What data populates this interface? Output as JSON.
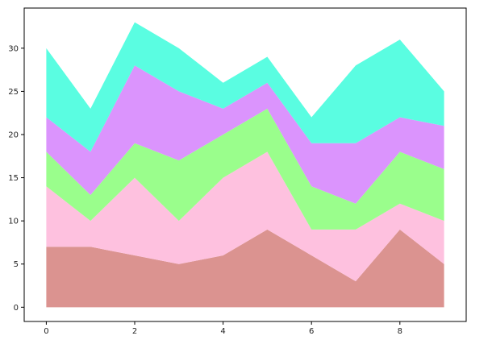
{
  "chart_data": {
    "type": "area",
    "stacked": true,
    "title": "",
    "xlabel": "",
    "ylabel": "",
    "x": [
      0,
      1,
      2,
      3,
      4,
      5,
      6,
      7,
      8,
      9
    ],
    "xlim": [
      -0.5,
      9.5
    ],
    "ylim": [
      -1.65,
      34.65
    ],
    "xticks": [
      0,
      2,
      4,
      6,
      8
    ],
    "yticks": [
      0,
      5,
      10,
      15,
      20,
      25,
      30
    ],
    "grid": false,
    "legend": "none",
    "series": [
      {
        "values": [
          7,
          7,
          6,
          5,
          6,
          9,
          6,
          3,
          9,
          5
        ],
        "color": "#db9390"
      },
      {
        "values": [
          7,
          3,
          9,
          5,
          9,
          9,
          3,
          6,
          3,
          5
        ],
        "color": "#fec1df"
      },
      {
        "values": [
          4,
          3,
          4,
          7,
          5,
          5,
          5,
          3,
          6,
          6
        ],
        "color": "#9afe8c"
      },
      {
        "values": [
          4,
          5,
          9,
          8,
          3,
          3,
          5,
          7,
          4,
          5
        ],
        "color": "#db94fd"
      },
      {
        "values": [
          8,
          5,
          5,
          5,
          3,
          3,
          3,
          9,
          9,
          4
        ],
        "color": "#5afde1"
      }
    ]
  }
}
